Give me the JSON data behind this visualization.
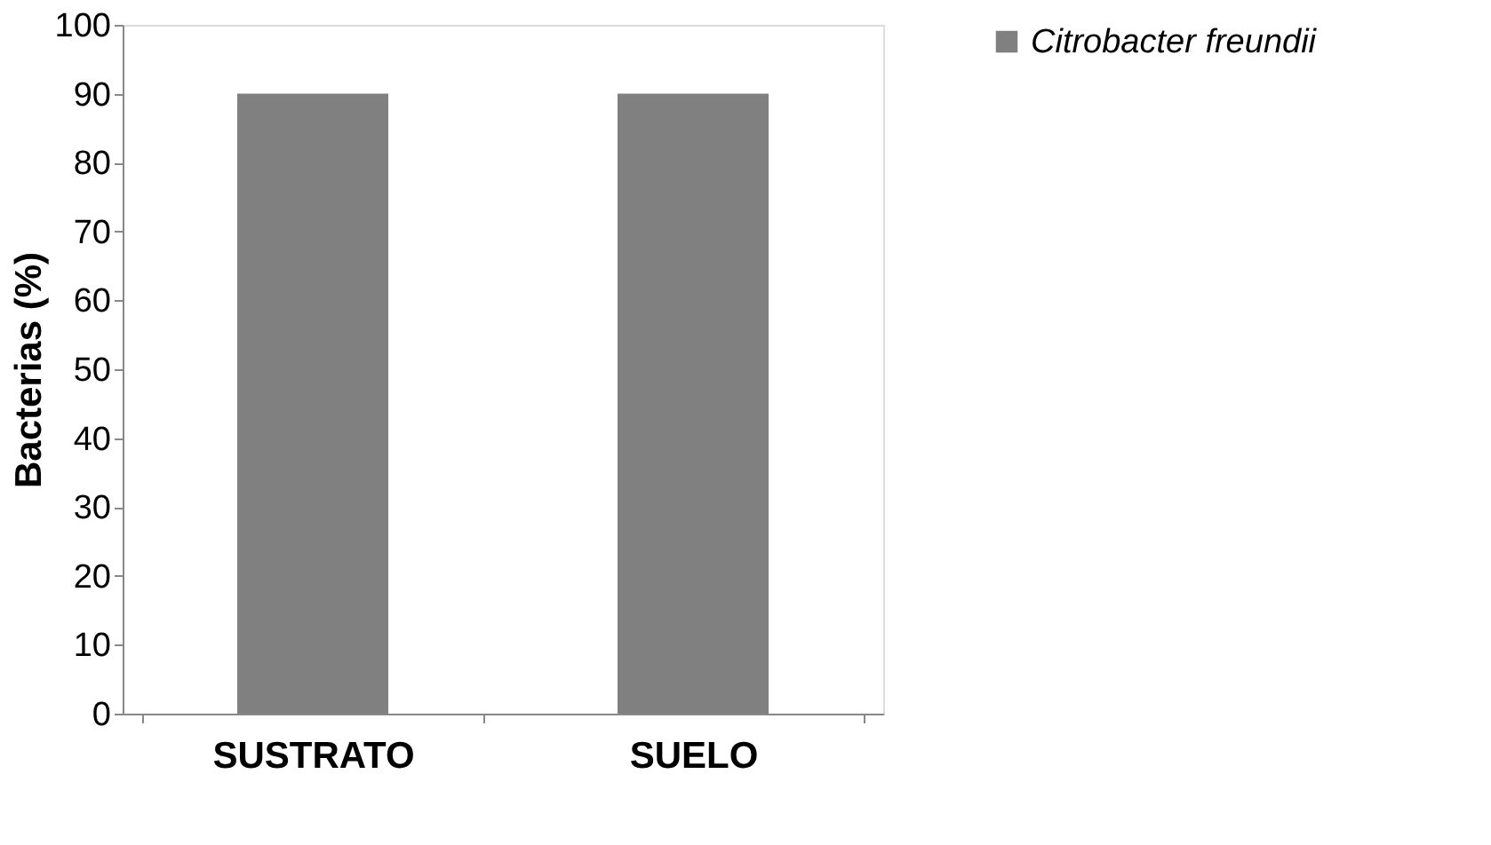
{
  "chart_data": {
    "type": "bar",
    "ylabel": "Bacterias (%)",
    "categories": [
      "SUSTRATO",
      "SUELO"
    ],
    "series": [
      {
        "name": "Citrobacter freundii",
        "color": "#808080",
        "values": [
          90,
          90
        ]
      }
    ],
    "ylim": [
      0,
      100
    ],
    "yticks": [
      0,
      10,
      20,
      30,
      40,
      50,
      60,
      70,
      80,
      90,
      100
    ],
    "grid": false,
    "legend": "top right"
  }
}
